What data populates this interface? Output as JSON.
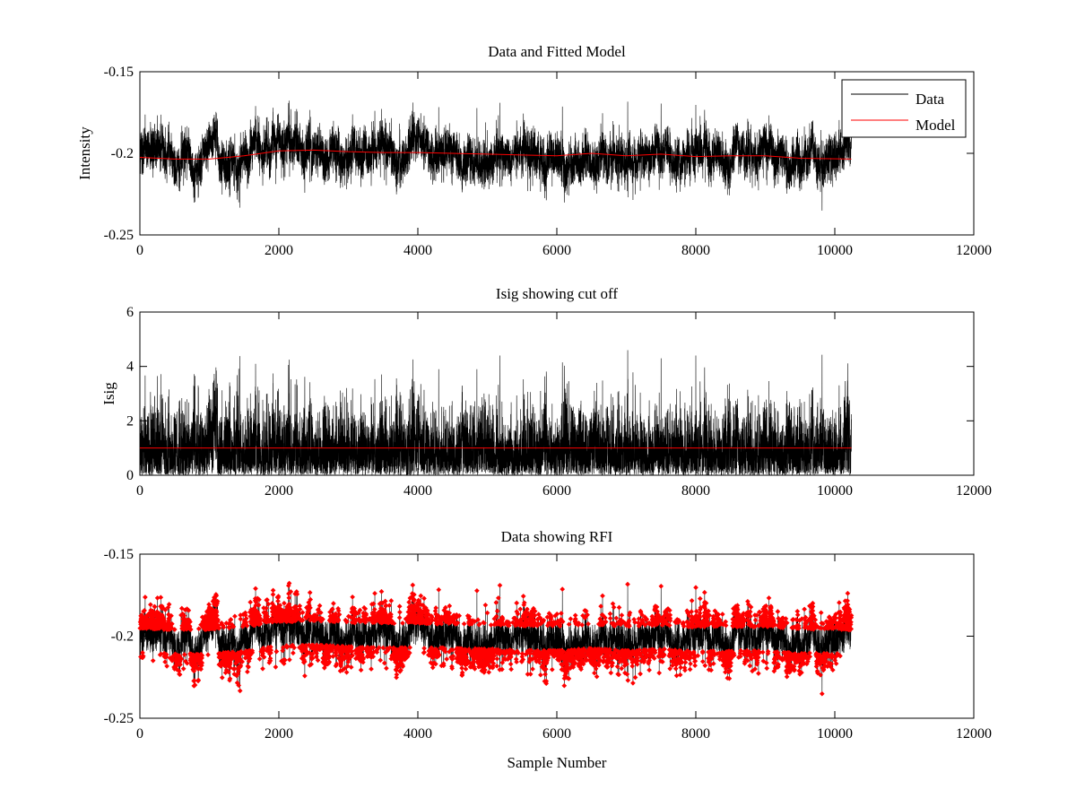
{
  "chart_data": [
    {
      "type": "line",
      "title": "Data and Fitted Model",
      "xlabel": "",
      "ylabel": "Intensity",
      "xlim": [
        0,
        12000
      ],
      "ylim": [
        -0.25,
        -0.15
      ],
      "xticks": [
        0,
        2000,
        4000,
        6000,
        8000,
        10000,
        12000
      ],
      "yticks": [
        -0.25,
        -0.2,
        -0.15
      ],
      "ytick_labels": [
        "-0.25",
        "-0.2",
        "-0.15"
      ],
      "grid": false,
      "legend": "top-right",
      "n_samples": 10240,
      "series": [
        {
          "name": "Data",
          "color": "#000000",
          "style": "line",
          "baseline": -0.2,
          "amplitude": 0.008,
          "min": -0.238,
          "max": -0.172
        },
        {
          "name": "Model",
          "color": "#ff0000",
          "style": "line",
          "x": [
            0,
            500,
            1000,
            1500,
            2000,
            2500,
            3000,
            3500,
            4000,
            4500,
            5000,
            5500,
            6000,
            6500,
            7000,
            7500,
            8000,
            8500,
            9000,
            9500,
            10240
          ],
          "y": [
            -0.2025,
            -0.2035,
            -0.2035,
            -0.2015,
            -0.1985,
            -0.198,
            -0.199,
            -0.1995,
            -0.1995,
            -0.2,
            -0.2005,
            -0.201,
            -0.2015,
            -0.2,
            -0.2015,
            -0.2005,
            -0.202,
            -0.2015,
            -0.2015,
            -0.203,
            -0.2035
          ]
        }
      ]
    },
    {
      "type": "line",
      "title": "Isig showing cut off",
      "xlabel": "",
      "ylabel": "Isig",
      "xlim": [
        0,
        12000
      ],
      "ylim": [
        0,
        6
      ],
      "xticks": [
        0,
        2000,
        4000,
        6000,
        8000,
        10000,
        12000
      ],
      "yticks": [
        0,
        2,
        4,
        6
      ],
      "ytick_labels": [
        "0",
        "2",
        "4",
        "6"
      ],
      "grid": false,
      "n_samples": 10240,
      "series": [
        {
          "color": "#000000",
          "style": "line",
          "max": 4.6,
          "peaks": [
            {
              "x": 1100,
              "y": 3.85
            },
            {
              "x": 2150,
              "y": 4.25
            },
            {
              "x": 4300,
              "y": 3.9
            },
            {
              "x": 4850,
              "y": 3.9
            },
            {
              "x": 5180,
              "y": 4.4
            },
            {
              "x": 6080,
              "y": 4.15
            },
            {
              "x": 7020,
              "y": 4.6
            },
            {
              "x": 7500,
              "y": 4.3
            },
            {
              "x": 8000,
              "y": 4.4
            }
          ]
        },
        {
          "color": "#ff0000",
          "style": "line",
          "x": [
            0,
            10240
          ],
          "y": [
            1,
            1
          ]
        }
      ]
    },
    {
      "type": "scatter",
      "title": "Data showing RFI",
      "xlabel": "Sample Number",
      "ylabel": "",
      "xlim": [
        0,
        12000
      ],
      "ylim": [
        -0.25,
        -0.15
      ],
      "xticks": [
        0,
        2000,
        4000,
        6000,
        8000,
        10000,
        12000
      ],
      "yticks": [
        -0.25,
        -0.2,
        -0.15
      ],
      "ytick_labels": [
        "-0.25",
        "-0.2",
        "-0.15"
      ],
      "grid": false,
      "n_samples": 10240,
      "series": [
        {
          "color": "#000000",
          "style": "line",
          "baseline": -0.2,
          "amplitude": 0.008,
          "min": -0.242,
          "max": -0.17
        },
        {
          "color": "#ff0000",
          "style": "markers",
          "marker": "diamond",
          "threshold_isig": 1
        }
      ]
    }
  ]
}
